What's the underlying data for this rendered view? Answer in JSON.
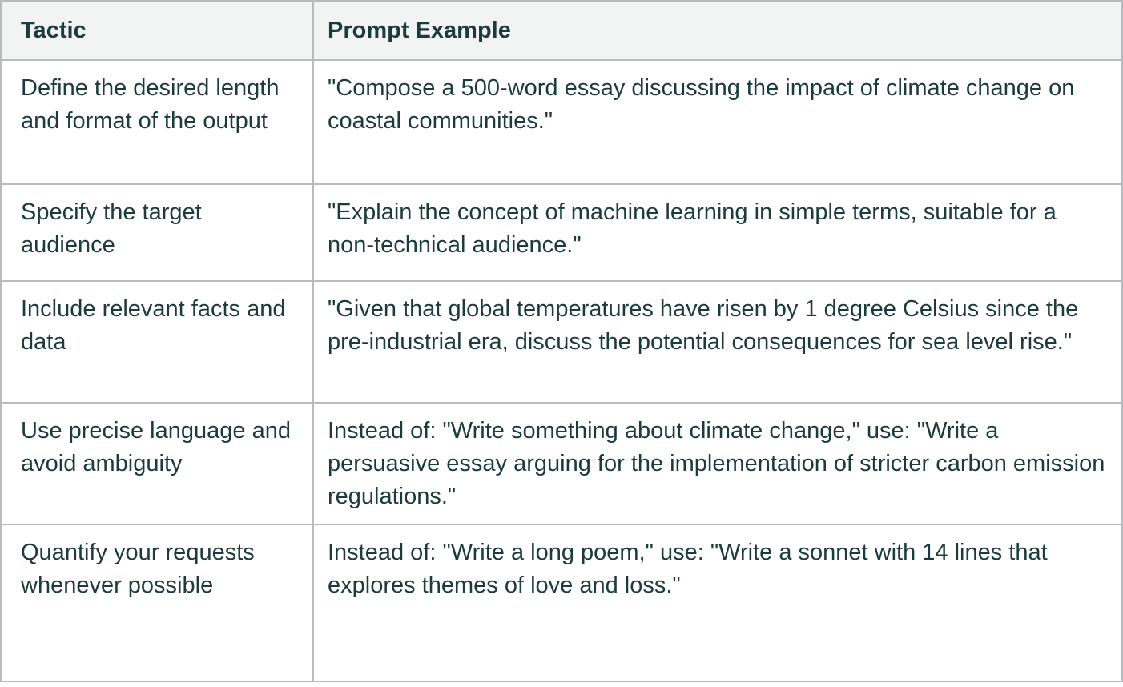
{
  "table": {
    "header": [
      "Tactic",
      "Prompt Example"
    ],
    "rows": [
      [
        "Define the desired length and format of the output",
        "\"Compose a 500-word essay discussing the impact of climate change on coastal communities.\""
      ],
      [
        "Specify the target audience",
        "\"Explain the concept of machine learning in simple terms, suitable for a non-technical audience.\""
      ],
      [
        "Include relevant facts and data",
        "\"Given that global temperatures have risen by 1 degree Celsius since the pre-industrial era, discuss the potential consequences for sea level rise.\""
      ],
      [
        "Use precise language and avoid ambiguity",
        "Instead of: \"Write something about climate change,\" use: \"Write a persuasive essay arguing for the implementation of stricter carbon emission regulations.\""
      ],
      [
        "Quantify your requests whenever possible",
        "Instead of: \"Write a long poem,\" use: \"Write a sonnet with 14 lines that explores themes of love and loss.\""
      ]
    ]
  }
}
